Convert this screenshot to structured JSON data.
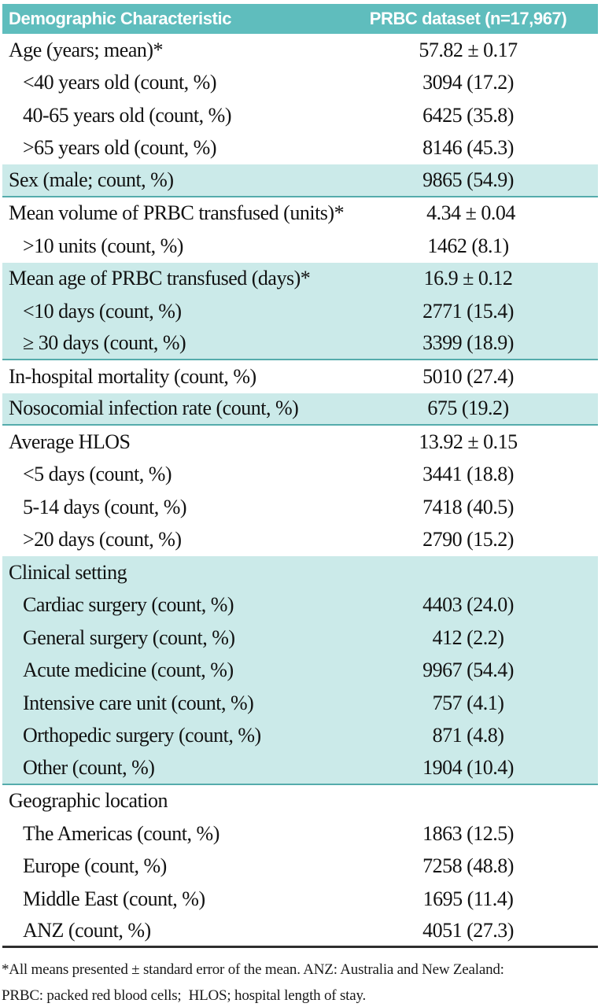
{
  "colors": {
    "header_bg": "#5fbdbd",
    "row_shaded": "#cbeae9",
    "separator": "#55acac",
    "bottom_rule": "#2e2e2e"
  },
  "table": {
    "columns": [
      "Demographic Characteristic",
      "PRBC dataset (n=17,967)"
    ],
    "rows": [
      {
        "label": "Age (years; mean)*",
        "value": "57.82 ± 0.17",
        "indent": false,
        "shaded": false,
        "separator_after": false,
        "dark_rule_after": false
      },
      {
        "label": "<40 years old (count, %)",
        "value": "3094 (17.2)",
        "indent": true,
        "shaded": false,
        "separator_after": false,
        "dark_rule_after": false
      },
      {
        "label": "40-65 years old (count, %)",
        "value": "6425 (35.8)",
        "indent": true,
        "shaded": false,
        "separator_after": false,
        "dark_rule_after": false
      },
      {
        "label": ">65 years old (count, %)",
        "value": "8146 (45.3)",
        "indent": true,
        "shaded": false,
        "separator_after": false,
        "dark_rule_after": false
      },
      {
        "label": "Sex (male; count, %)",
        "value": "9865 (54.9)",
        "indent": false,
        "shaded": true,
        "separator_after": true,
        "dark_rule_after": false
      },
      {
        "label": "Mean volume of PRBC transfused (units)*",
        "value": "4.34 ± 0.04",
        "indent": false,
        "shaded": false,
        "separator_after": false,
        "dark_rule_after": false
      },
      {
        "label": ">10 units (count, %)",
        "value": "1462 (8.1)",
        "indent": true,
        "shaded": false,
        "separator_after": false,
        "dark_rule_after": false
      },
      {
        "label": "Mean age of PRBC transfused (days)*",
        "value": "16.9 ± 0.12",
        "indent": false,
        "shaded": true,
        "separator_after": false,
        "dark_rule_after": false
      },
      {
        "label": "<10 days (count, %)",
        "value": "2771 (15.4)",
        "indent": true,
        "shaded": true,
        "separator_after": false,
        "dark_rule_after": false
      },
      {
        "label": "≥ 30 days (count, %)",
        "value": "3399 (18.9)",
        "indent": true,
        "shaded": true,
        "separator_after": true,
        "dark_rule_after": false
      },
      {
        "label": "In-hospital mortality (count, %)",
        "value": "5010 (27.4)",
        "indent": false,
        "shaded": false,
        "separator_after": false,
        "dark_rule_after": false
      },
      {
        "label": "Nosocomial infection rate (count, %)",
        "value": "675 (19.2)",
        "indent": false,
        "shaded": true,
        "separator_after": true,
        "dark_rule_after": false
      },
      {
        "label": "Average HLOS",
        "value": "13.92 ± 0.15",
        "indent": false,
        "shaded": false,
        "separator_after": false,
        "dark_rule_after": false
      },
      {
        "label": "<5 days (count, %)",
        "value": "3441 (18.8)",
        "indent": true,
        "shaded": false,
        "separator_after": false,
        "dark_rule_after": false
      },
      {
        "label": "5-14 days (count, %)",
        "value": "7418 (40.5)",
        "indent": true,
        "shaded": false,
        "separator_after": false,
        "dark_rule_after": false
      },
      {
        "label": ">20 days (count, %)",
        "value": "2790 (15.2)",
        "indent": true,
        "shaded": false,
        "separator_after": false,
        "dark_rule_after": false
      },
      {
        "label": "Clinical setting",
        "value": "",
        "indent": false,
        "shaded": true,
        "separator_after": false,
        "dark_rule_after": false
      },
      {
        "label": "Cardiac surgery (count, %)",
        "value": "4403 (24.0)",
        "indent": true,
        "shaded": true,
        "separator_after": false,
        "dark_rule_after": false
      },
      {
        "label": "General surgery (count, %)",
        "value": "412 (2.2)",
        "indent": true,
        "shaded": true,
        "separator_after": false,
        "dark_rule_after": false
      },
      {
        "label": "Acute medicine (count, %)",
        "value": "9967 (54.4)",
        "indent": true,
        "shaded": true,
        "separator_after": false,
        "dark_rule_after": false
      },
      {
        "label": "Intensive care unit (count, %)",
        "value": "757 (4.1)",
        "indent": true,
        "shaded": true,
        "separator_after": false,
        "dark_rule_after": false
      },
      {
        "label": "Orthopedic surgery (count, %)",
        "value": "871 (4.8)",
        "indent": true,
        "shaded": true,
        "separator_after": false,
        "dark_rule_after": false
      },
      {
        "label": "Other (count, %)",
        "value": "1904 (10.4)",
        "indent": true,
        "shaded": true,
        "separator_after": true,
        "dark_rule_after": false
      },
      {
        "label": "Geographic location",
        "value": "",
        "indent": false,
        "shaded": false,
        "separator_after": false,
        "dark_rule_after": false
      },
      {
        "label": "The Americas (count, %)",
        "value": "1863 (12.5)",
        "indent": true,
        "shaded": false,
        "separator_after": false,
        "dark_rule_after": false
      },
      {
        "label": "Europe (count, %)",
        "value": "7258 (48.8)",
        "indent": true,
        "shaded": false,
        "separator_after": false,
        "dark_rule_after": false
      },
      {
        "label": "Middle East (count, %)",
        "value": "1695 (11.4)",
        "indent": true,
        "shaded": false,
        "separator_after": false,
        "dark_rule_after": false
      },
      {
        "label": "ANZ (count, %)",
        "value": "4051 (27.3)",
        "indent": true,
        "shaded": false,
        "separator_after": false,
        "dark_rule_after": true
      }
    ],
    "footnote": {
      "line1": "*All means presented ± standard error of the mean. ANZ: Australia and New Zealand:",
      "line2": "PRBC: packed red blood cells;  HLOS; hospital length of stay."
    }
  }
}
